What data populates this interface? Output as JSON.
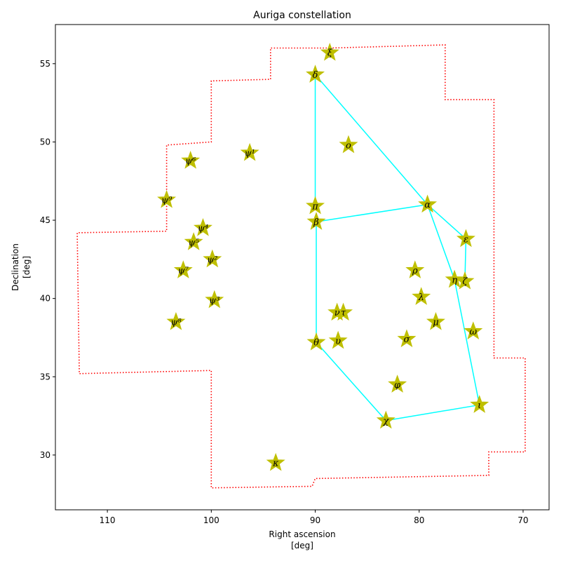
{
  "chart_data": {
    "type": "scatter",
    "title": "Auriga constellation",
    "xlabel": "Right ascension\n[deg]",
    "ylabel": "Declination\n[deg]",
    "xlim": [
      115,
      67.5
    ],
    "ylim": [
      26.5,
      57.5
    ],
    "x_ticks": [
      110,
      100,
      90,
      80,
      70
    ],
    "y_ticks": [
      30,
      35,
      40,
      45,
      50,
      55
    ],
    "x_inverted": true,
    "grid": false,
    "legend": "none",
    "colors": {
      "boundary": "#ff0000",
      "lines": "#00ffff",
      "stars": "#bfbf00"
    },
    "stars": [
      {
        "label": "ξ",
        "ra": 88.6,
        "dec": 55.7
      },
      {
        "label": "δ",
        "ra": 90.0,
        "dec": 54.3
      },
      {
        "label": "ο",
        "ra": 86.8,
        "dec": 49.8
      },
      {
        "label": "ψ¹",
        "ra": 96.3,
        "dec": 49.3
      },
      {
        "label": "ψ⁶",
        "ra": 102.0,
        "dec": 48.8
      },
      {
        "label": "ψ⁹",
        "ra": 104.3,
        "dec": 46.3
      },
      {
        "label": "π",
        "ra": 90.0,
        "dec": 45.9
      },
      {
        "label": "α",
        "ra": 79.2,
        "dec": 46.0
      },
      {
        "label": "β",
        "ra": 89.9,
        "dec": 44.9
      },
      {
        "label": "ψ⁴",
        "ra": 100.8,
        "dec": 44.5
      },
      {
        "label": "ε",
        "ra": 75.5,
        "dec": 43.8
      },
      {
        "label": "ψ⁵",
        "ra": 101.7,
        "dec": 43.6
      },
      {
        "label": "ψ²",
        "ra": 99.9,
        "dec": 42.5
      },
      {
        "label": "ρ",
        "ra": 80.4,
        "dec": 41.8
      },
      {
        "label": "ψ⁷",
        "ra": 102.7,
        "dec": 41.8
      },
      {
        "label": "η",
        "ra": 76.6,
        "dec": 41.2
      },
      {
        "label": "ζ",
        "ra": 75.6,
        "dec": 41.1
      },
      {
        "label": "λ",
        "ra": 79.8,
        "dec": 40.1
      },
      {
        "label": "ψ³",
        "ra": 99.7,
        "dec": 39.9
      },
      {
        "label": "ν",
        "ra": 87.9,
        "dec": 39.1
      },
      {
        "label": "τ",
        "ra": 87.3,
        "dec": 39.1
      },
      {
        "label": "ψ⁸",
        "ra": 103.4,
        "dec": 38.5
      },
      {
        "label": "μ",
        "ra": 78.4,
        "dec": 38.5
      },
      {
        "label": "ω",
        "ra": 74.8,
        "dec": 37.9
      },
      {
        "label": "υ",
        "ra": 87.8,
        "dec": 37.3
      },
      {
        "label": "σ",
        "ra": 81.2,
        "dec": 37.4
      },
      {
        "label": "θ",
        "ra": 89.9,
        "dec": 37.2
      },
      {
        "label": "φ",
        "ra": 82.1,
        "dec": 34.5
      },
      {
        "label": "ι",
        "ra": 74.2,
        "dec": 33.2
      },
      {
        "label": "χ",
        "ra": 83.2,
        "dec": 32.2
      },
      {
        "label": "κ",
        "ra": 93.8,
        "dec": 29.5
      }
    ],
    "lines": [
      [
        [
          90.0,
          54.3
        ],
        [
          79.2,
          46.0
        ]
      ],
      [
        [
          90.0,
          54.3
        ],
        [
          90.0,
          45.9
        ]
      ],
      [
        [
          89.9,
          44.9
        ],
        [
          79.2,
          46.0
        ]
      ],
      [
        [
          89.9,
          44.9
        ],
        [
          89.9,
          37.2
        ]
      ],
      [
        [
          79.2,
          46.0
        ],
        [
          75.5,
          43.8
        ]
      ],
      [
        [
          75.5,
          43.8
        ],
        [
          75.6,
          41.1
        ]
      ],
      [
        [
          79.2,
          46.0
        ],
        [
          76.6,
          41.2
        ]
      ],
      [
        [
          76.6,
          41.2
        ],
        [
          74.2,
          33.2
        ]
      ],
      [
        [
          74.2,
          33.2
        ],
        [
          83.2,
          32.2
        ]
      ],
      [
        [
          83.2,
          32.2
        ],
        [
          89.9,
          37.2
        ]
      ]
    ],
    "boundary": [
      [
        88.6,
        56.0
      ],
      [
        77.5,
        56.2
      ],
      [
        77.5,
        52.7
      ],
      [
        72.8,
        52.7
      ],
      [
        72.8,
        36.2
      ],
      [
        69.8,
        36.2
      ],
      [
        69.8,
        30.2
      ],
      [
        73.3,
        30.2
      ],
      [
        73.3,
        28.7
      ],
      [
        90.0,
        28.5
      ],
      [
        90.3,
        28.0
      ],
      [
        100.0,
        27.9
      ],
      [
        100.0,
        35.4
      ],
      [
        112.7,
        35.2
      ],
      [
        112.9,
        44.2
      ],
      [
        104.3,
        44.3
      ],
      [
        104.3,
        49.8
      ],
      [
        100.0,
        50.0
      ],
      [
        100.0,
        53.9
      ],
      [
        94.3,
        54.0
      ],
      [
        94.3,
        56.0
      ],
      [
        88.6,
        56.0
      ]
    ]
  }
}
